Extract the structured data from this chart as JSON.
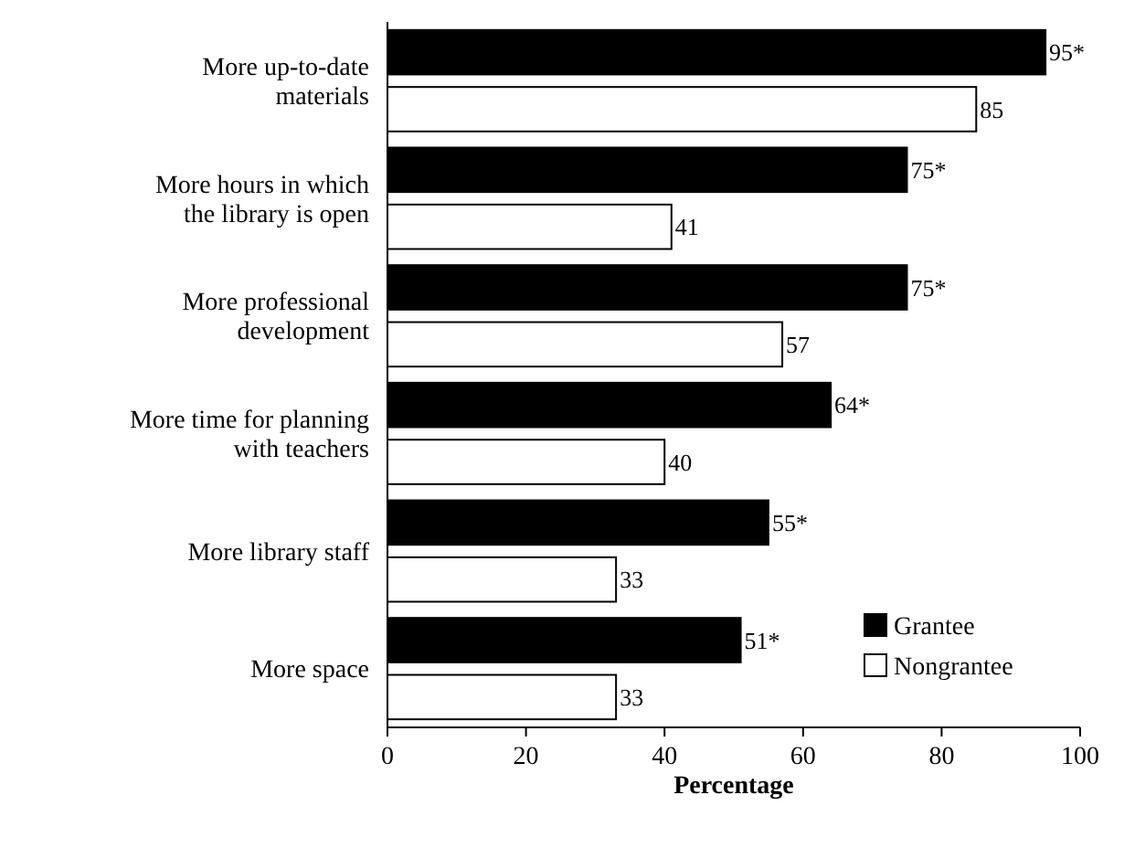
{
  "chart_data": {
    "type": "bar",
    "orientation": "horizontal",
    "xlabel": "Percentage",
    "categories": [
      "More up-to-date materials",
      "More hours in which the library is open",
      "More professional development",
      "More time for planning with teachers",
      "More library staff",
      "More space"
    ],
    "series": [
      {
        "name": "Grantee",
        "color": "#000000",
        "values": [
          95,
          75,
          75,
          64,
          55,
          51
        ],
        "value_labels": [
          "95*",
          "75*",
          "75*",
          "64*",
          "55*",
          "51*"
        ]
      },
      {
        "name": "Nongrantee",
        "color": "#ffffff",
        "values": [
          85,
          41,
          57,
          40,
          33,
          33
        ],
        "value_labels": [
          "85",
          "41",
          "57",
          "40",
          "33",
          "33"
        ]
      }
    ],
    "xlim": [
      0,
      100
    ],
    "xticks": [
      0,
      20,
      40,
      60,
      80,
      100
    ],
    "grid": false,
    "legend": "bottom right"
  }
}
